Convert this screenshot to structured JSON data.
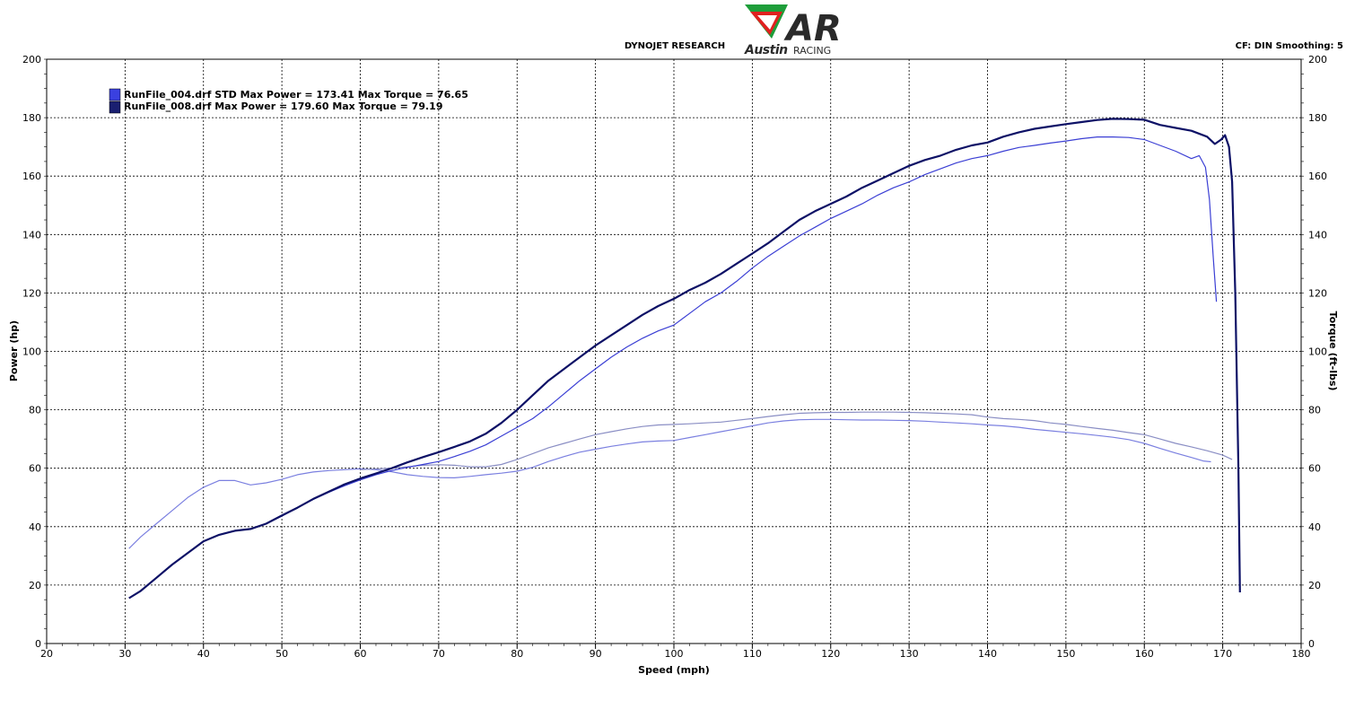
{
  "header": {
    "company": "DYNOJET RESEARCH",
    "settings": "CF: DIN  Smoothing: 5",
    "logo_text_bold": "Austin",
    "logo_text_light": "RACING",
    "logo_letters": "AR",
    "logo_colors": {
      "green": "#1e9e3a",
      "red": "#e0201f",
      "dark": "#2a2a2a"
    }
  },
  "chart_data": {
    "type": "line",
    "xlabel": "Speed (mph)",
    "ylabel": "Power (hp)",
    "y2label": "Torque (ft-lbs)",
    "xlim": [
      20,
      180
    ],
    "ylim": [
      0,
      200
    ],
    "y2lim": [
      0,
      200
    ],
    "x_ticks": [
      "20",
      "30",
      "40",
      "50",
      "60",
      "70",
      "80",
      "90",
      "100",
      "110",
      "120",
      "130",
      "140",
      "150",
      "160",
      "170",
      "180"
    ],
    "y_ticks": [
      "0",
      "20",
      "40",
      "60",
      "80",
      "100",
      "120",
      "140",
      "160",
      "180",
      "200"
    ],
    "grid": true,
    "legend_position": "top-left",
    "legend": [
      {
        "text": "RunFile_004.drf STD Max Power = 173.41 Max Torque = 76.65",
        "swatch": "#3a40e0"
      },
      {
        "text": "RunFile_008.drf Max Power = 179.60 Max Torque = 79.19",
        "swatch": "#1a1f70"
      }
    ],
    "series": [
      {
        "name": "RunFile_008.drf",
        "kind": "power",
        "axis": "left",
        "color": "#0d1166",
        "width": 2.2,
        "points": [
          [
            30.5,
            15.5
          ],
          [
            32,
            18
          ],
          [
            34,
            22.5
          ],
          [
            36,
            27
          ],
          [
            38,
            31
          ],
          [
            40,
            35
          ],
          [
            42,
            37.2
          ],
          [
            44,
            38.6
          ],
          [
            46,
            39.2
          ],
          [
            48,
            41
          ],
          [
            50,
            43.8
          ],
          [
            52,
            46.5
          ],
          [
            54,
            49.5
          ],
          [
            56,
            52
          ],
          [
            58,
            54.5
          ],
          [
            60,
            56.5
          ],
          [
            62,
            58.2
          ],
          [
            64,
            60
          ],
          [
            66,
            62
          ],
          [
            68,
            63.8
          ],
          [
            70,
            65.5
          ],
          [
            72,
            67.3
          ],
          [
            74,
            69.2
          ],
          [
            76,
            71.8
          ],
          [
            78,
            75.5
          ],
          [
            80,
            80
          ],
          [
            82,
            85
          ],
          [
            84,
            90
          ],
          [
            86,
            94
          ],
          [
            88,
            98
          ],
          [
            90,
            102
          ],
          [
            92,
            105.5
          ],
          [
            94,
            109
          ],
          [
            96,
            112.5
          ],
          [
            98,
            115.5
          ],
          [
            100,
            118
          ],
          [
            102,
            121
          ],
          [
            104,
            123.5
          ],
          [
            106,
            126.5
          ],
          [
            108,
            130
          ],
          [
            110,
            133.5
          ],
          [
            112,
            137
          ],
          [
            114,
            141
          ],
          [
            116,
            145
          ],
          [
            118,
            148
          ],
          [
            120,
            150.5
          ],
          [
            122,
            153
          ],
          [
            124,
            156
          ],
          [
            126,
            158.5
          ],
          [
            128,
            161
          ],
          [
            130,
            163.5
          ],
          [
            132,
            165.5
          ],
          [
            134,
            167
          ],
          [
            136,
            169
          ],
          [
            138,
            170.5
          ],
          [
            140,
            171.5
          ],
          [
            142,
            173.5
          ],
          [
            144,
            175
          ],
          [
            146,
            176.2
          ],
          [
            148,
            177
          ],
          [
            150,
            177.8
          ],
          [
            152,
            178.5
          ],
          [
            154,
            179.2
          ],
          [
            156,
            179.6
          ],
          [
            158,
            179.5
          ],
          [
            160,
            179.3
          ],
          [
            162,
            177.5
          ],
          [
            164,
            176.5
          ],
          [
            166,
            175.5
          ],
          [
            168,
            173.5
          ],
          [
            169,
            171
          ],
          [
            169.8,
            172.5
          ],
          [
            170.3,
            174
          ],
          [
            170.8,
            170
          ],
          [
            171.2,
            158
          ],
          [
            171.6,
            120
          ],
          [
            172,
            60
          ],
          [
            172.2,
            17.5
          ]
        ]
      },
      {
        "name": "RunFile_004.drf",
        "kind": "power",
        "axis": "left",
        "color": "#3b3fd4",
        "width": 1.2,
        "points": [
          [
            46,
            39.2
          ],
          [
            48,
            41
          ],
          [
            50,
            43.6
          ],
          [
            52,
            46.5
          ],
          [
            54,
            49.3
          ],
          [
            56,
            51.8
          ],
          [
            58,
            54
          ],
          [
            60,
            56
          ],
          [
            62,
            57.8
          ],
          [
            64,
            59.2
          ],
          [
            66,
            60.3
          ],
          [
            68,
            61.3
          ],
          [
            70,
            62.3
          ],
          [
            72,
            64
          ],
          [
            74,
            65.8
          ],
          [
            76,
            68
          ],
          [
            78,
            71
          ],
          [
            80,
            74
          ],
          [
            82,
            77
          ],
          [
            84,
            81
          ],
          [
            86,
            85.5
          ],
          [
            88,
            90
          ],
          [
            90,
            94
          ],
          [
            92,
            98
          ],
          [
            94,
            101.5
          ],
          [
            96,
            104.5
          ],
          [
            98,
            107
          ],
          [
            100,
            109
          ],
          [
            102,
            113
          ],
          [
            104,
            117
          ],
          [
            106,
            120
          ],
          [
            108,
            124
          ],
          [
            110,
            128.5
          ],
          [
            112,
            132.5
          ],
          [
            114,
            136
          ],
          [
            116,
            139.5
          ],
          [
            118,
            142.5
          ],
          [
            120,
            145.5
          ],
          [
            122,
            148
          ],
          [
            124,
            150.5
          ],
          [
            126,
            153.5
          ],
          [
            128,
            156
          ],
          [
            130,
            158
          ],
          [
            132,
            160.5
          ],
          [
            134,
            162.5
          ],
          [
            136,
            164.5
          ],
          [
            138,
            166
          ],
          [
            140,
            167
          ],
          [
            142,
            168.5
          ],
          [
            144,
            169.8
          ],
          [
            146,
            170.5
          ],
          [
            148,
            171.3
          ],
          [
            150,
            172
          ],
          [
            152,
            172.8
          ],
          [
            154,
            173.4
          ],
          [
            156,
            173.4
          ],
          [
            158,
            173.2
          ],
          [
            160,
            172.5
          ],
          [
            162,
            170.5
          ],
          [
            164,
            168.5
          ],
          [
            166,
            166
          ],
          [
            167,
            167
          ],
          [
            167.8,
            163
          ],
          [
            168.3,
            152
          ],
          [
            168.8,
            132
          ],
          [
            169.2,
            117
          ]
        ]
      },
      {
        "name": "RunFile_004.drf",
        "kind": "torque",
        "axis": "right",
        "color": "#7b80e0",
        "width": 1.2,
        "points": [
          [
            30.5,
            32.5
          ],
          [
            32,
            36.5
          ],
          [
            34,
            41
          ],
          [
            36,
            45.5
          ],
          [
            38,
            50
          ],
          [
            40,
            53.5
          ],
          [
            42,
            55.8
          ],
          [
            44,
            55.8
          ],
          [
            46,
            54.3
          ],
          [
            48,
            55
          ],
          [
            50,
            56.2
          ],
          [
            52,
            57.8
          ],
          [
            54,
            58.7
          ],
          [
            56,
            59.2
          ],
          [
            58,
            59.5
          ],
          [
            60,
            59.8
          ],
          [
            62,
            59.5
          ],
          [
            64,
            58.8
          ],
          [
            66,
            57.8
          ],
          [
            68,
            57.2
          ],
          [
            70,
            56.8
          ],
          [
            72,
            56.7
          ],
          [
            74,
            57.2
          ],
          [
            76,
            57.8
          ],
          [
            78,
            58.3
          ],
          [
            80,
            59
          ],
          [
            82,
            60.3
          ],
          [
            84,
            62.3
          ],
          [
            86,
            64
          ],
          [
            88,
            65.5
          ],
          [
            90,
            66.5
          ],
          [
            92,
            67.5
          ],
          [
            94,
            68.3
          ],
          [
            96,
            69
          ],
          [
            98,
            69.3
          ],
          [
            100,
            69.5
          ],
          [
            102,
            70.5
          ],
          [
            104,
            71.5
          ],
          [
            106,
            72.5
          ],
          [
            108,
            73.5
          ],
          [
            110,
            74.5
          ],
          [
            112,
            75.5
          ],
          [
            114,
            76.2
          ],
          [
            116,
            76.6
          ],
          [
            118,
            76.7
          ],
          [
            120,
            76.7
          ],
          [
            122,
            76.6
          ],
          [
            124,
            76.5
          ],
          [
            126,
            76.5
          ],
          [
            128,
            76.4
          ],
          [
            130,
            76.3
          ],
          [
            132,
            76.1
          ],
          [
            134,
            75.8
          ],
          [
            136,
            75.5
          ],
          [
            138,
            75.2
          ],
          [
            140,
            74.8
          ],
          [
            142,
            74.5
          ],
          [
            144,
            74
          ],
          [
            146,
            73.3
          ],
          [
            148,
            72.8
          ],
          [
            150,
            72.3
          ],
          [
            152,
            71.8
          ],
          [
            154,
            71.2
          ],
          [
            156,
            70.6
          ],
          [
            158,
            69.8
          ],
          [
            160,
            68.5
          ],
          [
            162,
            66.8
          ],
          [
            164,
            65.2
          ],
          [
            166,
            63.7
          ],
          [
            167.5,
            62.5
          ],
          [
            168.5,
            62.2
          ]
        ]
      },
      {
        "name": "RunFile_008.drf",
        "kind": "torque",
        "axis": "right",
        "color": "#8a8ec4",
        "width": 1.2,
        "points": [
          [
            60,
            59.5
          ],
          [
            62,
            59.8
          ],
          [
            64,
            60
          ],
          [
            66,
            60.5
          ],
          [
            68,
            61
          ],
          [
            70,
            61.2
          ],
          [
            72,
            61
          ],
          [
            74,
            60.5
          ],
          [
            76,
            60.5
          ],
          [
            78,
            61.3
          ],
          [
            80,
            63
          ],
          [
            82,
            65
          ],
          [
            84,
            67
          ],
          [
            86,
            68.5
          ],
          [
            88,
            70
          ],
          [
            90,
            71.5
          ],
          [
            92,
            72.5
          ],
          [
            94,
            73.5
          ],
          [
            96,
            74.3
          ],
          [
            98,
            74.8
          ],
          [
            100,
            75
          ],
          [
            102,
            75.2
          ],
          [
            104,
            75.5
          ],
          [
            106,
            75.8
          ],
          [
            108,
            76.4
          ],
          [
            110,
            77
          ],
          [
            112,
            77.7
          ],
          [
            114,
            78.3
          ],
          [
            116,
            78.8
          ],
          [
            118,
            79
          ],
          [
            120,
            79.1
          ],
          [
            122,
            79.1
          ],
          [
            124,
            79.2
          ],
          [
            126,
            79.2
          ],
          [
            128,
            79.2
          ],
          [
            130,
            79.1
          ],
          [
            132,
            79
          ],
          [
            134,
            78.8
          ],
          [
            136,
            78.6
          ],
          [
            138,
            78.3
          ],
          [
            140,
            77.5
          ],
          [
            142,
            77
          ],
          [
            144,
            76.7
          ],
          [
            146,
            76.3
          ],
          [
            148,
            75.5
          ],
          [
            150,
            75
          ],
          [
            152,
            74.3
          ],
          [
            154,
            73.6
          ],
          [
            156,
            73
          ],
          [
            158,
            72.2
          ],
          [
            160,
            71.5
          ],
          [
            162,
            70
          ],
          [
            164,
            68.5
          ],
          [
            166,
            67.3
          ],
          [
            168,
            66
          ],
          [
            170,
            64.5
          ],
          [
            171.2,
            63
          ]
        ]
      }
    ]
  }
}
